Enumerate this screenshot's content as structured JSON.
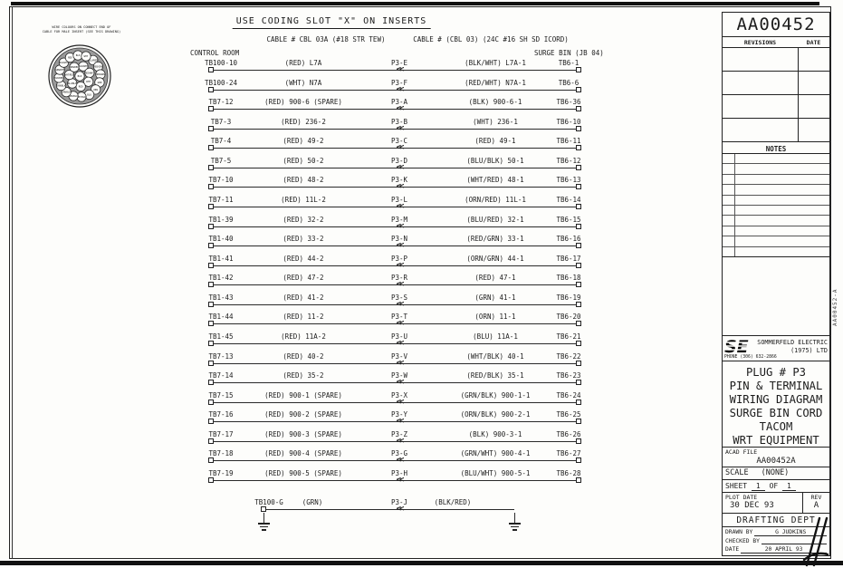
{
  "header": {
    "title": "USE CODING SLOT \"X\" ON INSERTS",
    "cable_left": "CABLE # CBL 03A (#18 STR TEW)",
    "cable_right": "CABLE # (CBL 03) (24C #16 SH SD ICORD)",
    "location_left": "CONTROL ROOM",
    "location_right": "SURGE BIN (JB 04)"
  },
  "connector_inset": {
    "caption_line1": "WIRE COLOURS ON CONNECT END OF",
    "caption_line2": "CABLE FOR MALE INSERT (SEE THIS DRAWING)",
    "pins": [
      "BLK",
      "BLK/WHT",
      "RED/WHT",
      "WHT",
      "RED",
      "BLU/BLK",
      "WHT/RED",
      "ORN/RED",
      "BLU/RED",
      "RED/GRN",
      "ORN/GRN",
      "GRN",
      "ORN",
      "BLU",
      "WHT/BLK",
      "RED/BLK",
      "GRN/BLK",
      "ORN/BLK",
      "BLK/RED",
      "GRN/WHT",
      "BLU/WHT",
      "RED",
      "BLK",
      "WHT"
    ]
  },
  "rows": [
    {
      "from": "TB100-10",
      "wire_left": "(RED) L7A",
      "pin": "P3-E",
      "wire_right": "(BLK/WHT) L7A-1",
      "to": "TB6-1"
    },
    {
      "from": "TB100-24",
      "wire_left": "(WHT) N7A",
      "pin": "P3-F",
      "wire_right": "(RED/WHT) N7A-1",
      "to": "TB6-6"
    },
    {
      "from": "TB7-12",
      "wire_left": "(RED) 900-6 (SPARE)",
      "pin": "P3-A",
      "wire_right": "(BLK) 900-6-1",
      "to": "TB6-36"
    },
    {
      "from": "TB7-3",
      "wire_left": "(RED) 236-2",
      "pin": "P3-B",
      "wire_right": "(WHT) 236-1",
      "to": "TB6-10"
    },
    {
      "from": "TB7-4",
      "wire_left": "(RED) 49-2",
      "pin": "P3-C",
      "wire_right": "(RED) 49-1",
      "to": "TB6-11"
    },
    {
      "from": "TB7-5",
      "wire_left": "(RED) 50-2",
      "pin": "P3-D",
      "wire_right": "(BLU/BLK) 50-1",
      "to": "TB6-12"
    },
    {
      "from": "TB7-10",
      "wire_left": "(RED) 48-2",
      "pin": "P3-K",
      "wire_right": "(WHT/RED) 48-1",
      "to": "TB6-13"
    },
    {
      "from": "TB7-11",
      "wire_left": "(RED) 11L-2",
      "pin": "P3-L",
      "wire_right": "(ORN/RED) 11L-1",
      "to": "TB6-14"
    },
    {
      "from": "TB1-39",
      "wire_left": "(RED) 32-2",
      "pin": "P3-M",
      "wire_right": "(BLU/RED) 32-1",
      "to": "TB6-15"
    },
    {
      "from": "TB1-40",
      "wire_left": "(RED) 33-2",
      "pin": "P3-N",
      "wire_right": "(RED/GRN) 33-1",
      "to": "TB6-16"
    },
    {
      "from": "TB1-41",
      "wire_left": "(RED) 44-2",
      "pin": "P3-P",
      "wire_right": "(ORN/GRN) 44-1",
      "to": "TB6-17"
    },
    {
      "from": "TB1-42",
      "wire_left": "(RED) 47-2",
      "pin": "P3-R",
      "wire_right": "(RED) 47-1",
      "to": "TB6-18"
    },
    {
      "from": "TB1-43",
      "wire_left": "(RED) 41-2",
      "pin": "P3-S",
      "wire_right": "(GRN) 41-1",
      "to": "TB6-19"
    },
    {
      "from": "TB1-44",
      "wire_left": "(RED) 11-2",
      "pin": "P3-T",
      "wire_right": "(ORN) 11-1",
      "to": "TB6-20"
    },
    {
      "from": "TB1-45",
      "wire_left": "(RED) 11A-2",
      "pin": "P3-U",
      "wire_right": "(BLU) 11A-1",
      "to": "TB6-21"
    },
    {
      "from": "TB7-13",
      "wire_left": "(RED) 40-2",
      "pin": "P3-V",
      "wire_right": "(WHT/BLK) 40-1",
      "to": "TB6-22"
    },
    {
      "from": "TB7-14",
      "wire_left": "(RED) 35-2",
      "pin": "P3-W",
      "wire_right": "(RED/BLK) 35-1",
      "to": "TB6-23"
    },
    {
      "from": "TB7-15",
      "wire_left": "(RED) 900-1 (SPARE)",
      "pin": "P3-X",
      "wire_right": "(GRN/BLK) 900-1-1",
      "to": "TB6-24"
    },
    {
      "from": "TB7-16",
      "wire_left": "(RED) 900-2 (SPARE)",
      "pin": "P3-Y",
      "wire_right": "(ORN/BLK) 900-2-1",
      "to": "TB6-25"
    },
    {
      "from": "TB7-17",
      "wire_left": "(RED) 900-3 (SPARE)",
      "pin": "P3-Z",
      "wire_right": "(BLK) 900-3-1",
      "to": "TB6-26"
    },
    {
      "from": "TB7-18",
      "wire_left": "(RED) 900-4 (SPARE)",
      "pin": "P3-G",
      "wire_right": "(GRN/WHT) 900-4-1",
      "to": "TB6-27"
    },
    {
      "from": "TB7-19",
      "wire_left": "(RED) 900-5 (SPARE)",
      "pin": "P3-H",
      "wire_right": "(BLU/WHT) 900-5-1",
      "to": "TB6-28"
    }
  ],
  "ground_row": {
    "from": "TB100-G",
    "wire_left": "(GRN)",
    "pin": "P3-J",
    "wire_right": "(BLK/RED)"
  },
  "title_block": {
    "drawing_number": "AA00452",
    "revisions_label": "REVISIONS",
    "date_col_label": "DATE",
    "notes_label": "NOTES",
    "logo_text": "SE",
    "company_name": "SOMMERFELD ELECTRIC",
    "company_sub": "(1975) LTD",
    "company_phone": "PHONE (306) 632-2866",
    "title_lines": [
      "PLUG # P3",
      "PIN & TERMINAL",
      "WIRING DIAGRAM",
      "SURGE BIN CORD",
      "TACOM",
      "WRT EQUIPMENT"
    ],
    "acad_file_label": "ACAD FILE",
    "acad_file": "AA00452A",
    "scale_label": "SCALE",
    "scale_value": "(NONE)",
    "sheet_label": "SHEET",
    "sheet_num": "1",
    "sheet_of": "OF",
    "sheet_total": "1",
    "plot_date_label": "PLOT DATE",
    "plot_date": "30 DEC 93",
    "rev_label": "REV",
    "rev_value": "A",
    "dept": "DRAFTING DEPT",
    "drawn_by_label": "DRAWN BY",
    "drawn_by": "G JUDKINS",
    "checked_by_label": "CHECKED BY",
    "checked_by": "",
    "date_label": "DATE",
    "date_value": "20 APRIL 93"
  },
  "edge_text": "AA00452-A"
}
